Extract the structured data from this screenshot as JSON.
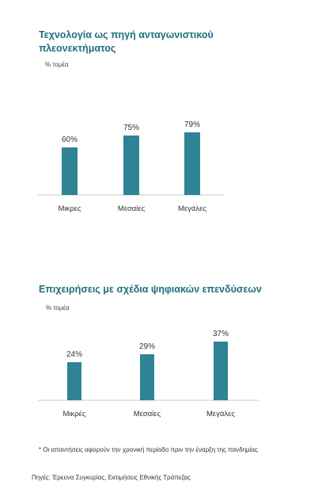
{
  "chart_data": [
    {
      "type": "bar",
      "title": "Τεχνολογία ως πηγή ανταγωνιστικού πλεονεκτήματος",
      "unit_label": "% τομέα",
      "categories": [
        "Μικρες",
        "Μεσαίες",
        "Μεγάλες"
      ],
      "values": [
        60,
        75,
        79
      ],
      "value_labels": [
        "60%",
        "75%",
        "79%"
      ],
      "ylim": [
        0,
        100
      ],
      "color": "#2e8494"
    },
    {
      "type": "bar",
      "title": "Επιχειρήσεις με σχέδια ψηφιακών επενδύσεων",
      "unit_label": "% τομέα",
      "categories": [
        "Μικρές",
        "Μεσαίες",
        "Μεγάλες"
      ],
      "values": [
        24,
        29,
        37
      ],
      "value_labels": [
        "24%",
        "29%",
        "37%"
      ],
      "ylim": [
        0,
        50
      ],
      "color": "#2e8494"
    }
  ],
  "footnote": "* Οι απαντήσεις αφορούν την χρονική περίοδο πριν την έναρξη της πανδημίας",
  "source": "Πηγές: Έρευνα Συγκυρίας, Εκτιμήσεις Εθνικής Τράπεζας"
}
